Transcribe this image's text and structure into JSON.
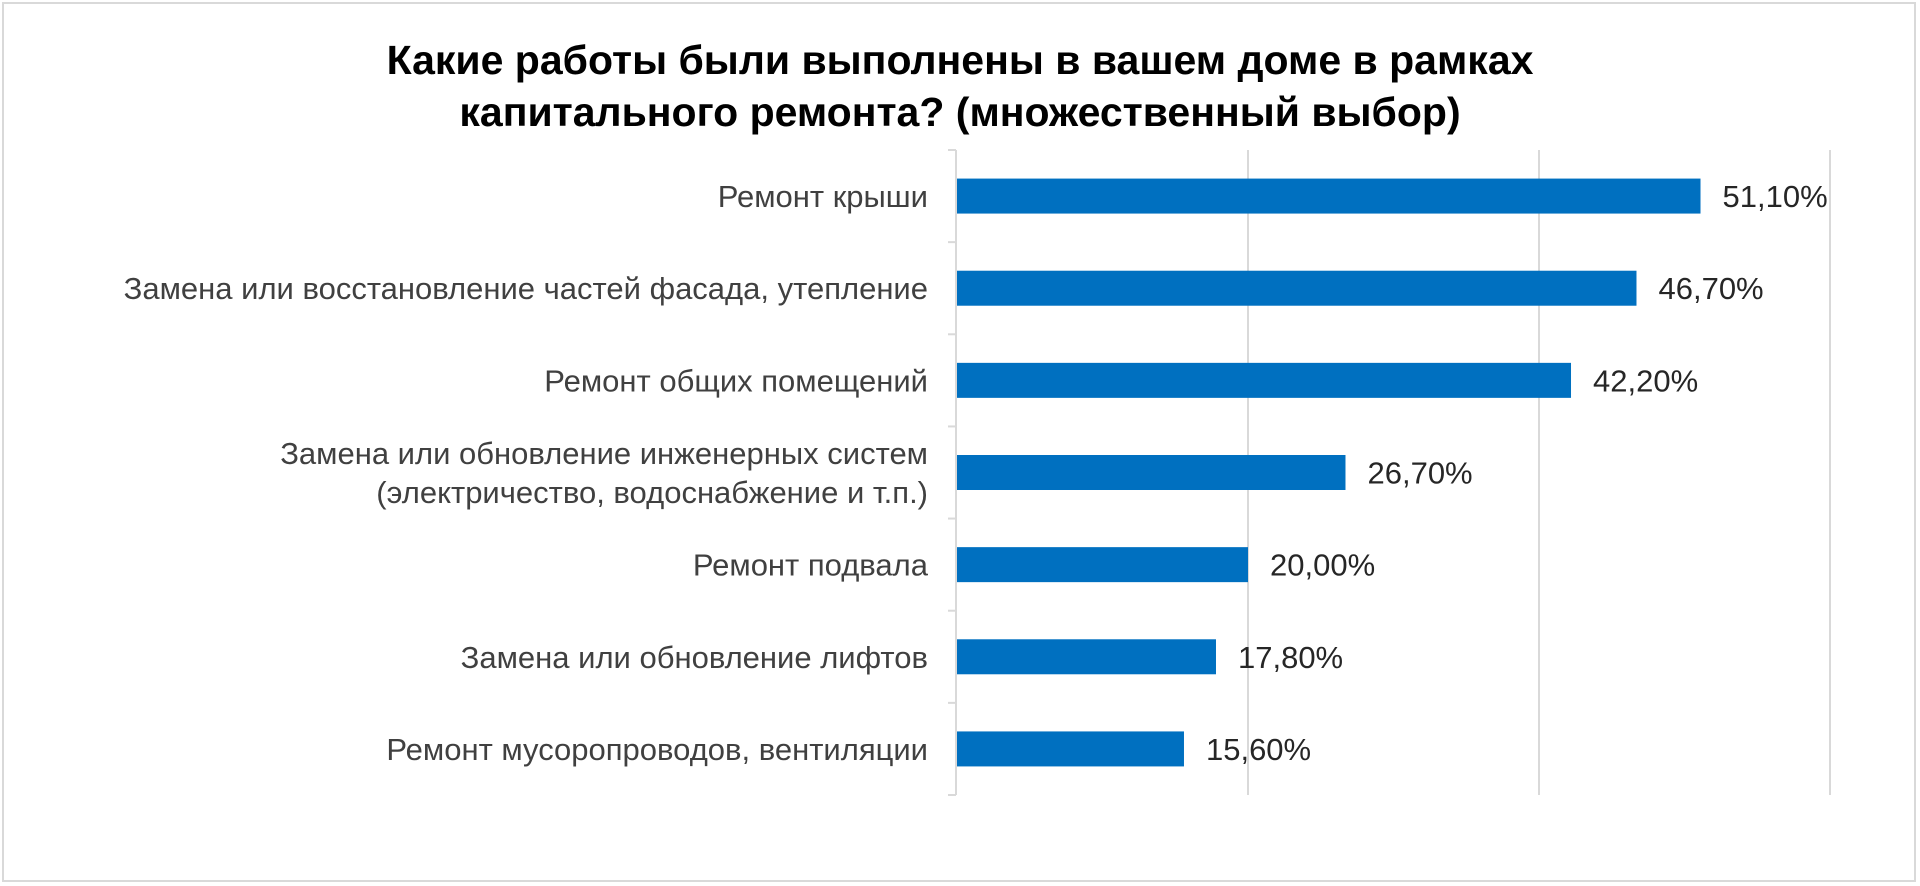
{
  "chart_data": {
    "type": "bar",
    "orientation": "horizontal",
    "title_lines": [
      "Какие работы были выполнены в вашем доме в рамках",
      "капитального ремонта? (множественный выбор)"
    ],
    "categories": [
      [
        "Ремонт крыши"
      ],
      [
        "Замена или восстановление частей фасада, утепление"
      ],
      [
        "Ремонт общих помещений"
      ],
      [
        "Замена или обновление инженерных систем",
        "(электричество, водоснабжение и т.п.)"
      ],
      [
        "Ремонт подвала"
      ],
      [
        "Замена или обновление лифтов"
      ],
      [
        "Ремонт мусоропроводов, вентиляции"
      ]
    ],
    "values": [
      51.1,
      46.7,
      42.2,
      26.7,
      20.0,
      17.8,
      15.6
    ],
    "value_labels": [
      "51,10%",
      "46,70%",
      "42,20%",
      "26,70%",
      "20,00%",
      "17,80%",
      "15,60%"
    ],
    "xlim": [
      0,
      60
    ],
    "x_gridlines": [
      0,
      20,
      40,
      60
    ],
    "x_tick_labels_visible": false,
    "grid": true,
    "legend": "none",
    "bar_color": "#0070c0",
    "grid_color": "#d9d9d9"
  }
}
